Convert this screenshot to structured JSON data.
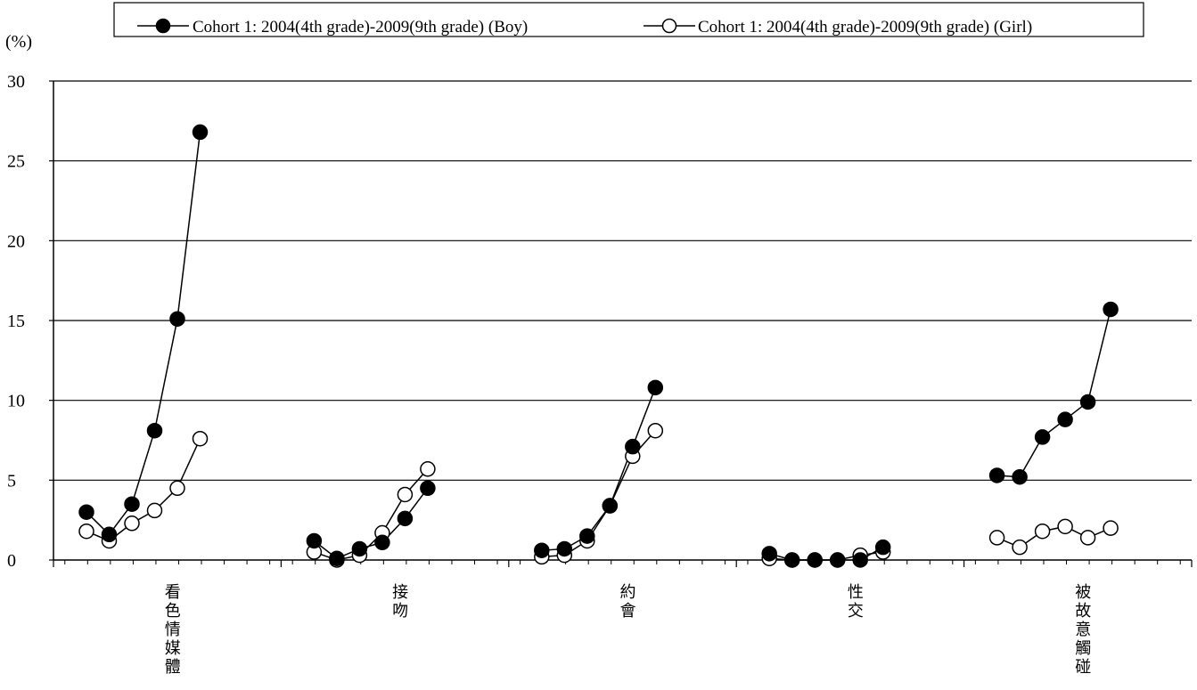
{
  "chart_data": {
    "type": "line",
    "ylabel": "(%)",
    "ylim": [
      0,
      30
    ],
    "yticks": [
      0,
      5,
      10,
      15,
      20,
      25,
      30
    ],
    "grid": true,
    "legend_position": "top",
    "categories": [
      "看色情媒體",
      "接吻",
      "約會",
      "性交",
      "被故意觸碰"
    ],
    "series": [
      {
        "name": "Cohort 1: 2004(4th grade)-2009(9th grade) (Boy)",
        "marker": "filled",
        "color": "#000000",
        "groups": [
          [
            3.0,
            1.6,
            3.5,
            8.1,
            15.1,
            26.8
          ],
          [
            1.2,
            0.1,
            0.7,
            1.1,
            2.6,
            4.5
          ],
          [
            0.6,
            0.7,
            1.5,
            3.4,
            7.1,
            10.8
          ],
          [
            0.4,
            0.0,
            0.0,
            0.0,
            0.0,
            0.8
          ],
          [
            5.3,
            5.2,
            7.7,
            8.8,
            9.9,
            15.7
          ]
        ]
      },
      {
        "name": "Cohort 1: 2004(4th grade)-2009(9th grade) (Girl)",
        "marker": "open",
        "color": "#000000",
        "groups": [
          [
            1.8,
            1.2,
            2.3,
            3.1,
            4.5,
            7.6
          ],
          [
            0.5,
            0.0,
            0.3,
            1.7,
            4.1,
            5.7
          ],
          [
            0.2,
            0.3,
            1.2,
            3.4,
            6.5,
            8.1
          ],
          [
            0.1,
            0.0,
            0.0,
            0.0,
            0.3,
            0.5
          ],
          [
            1.4,
            0.8,
            1.8,
            2.1,
            1.4,
            2.0
          ]
        ]
      }
    ]
  }
}
